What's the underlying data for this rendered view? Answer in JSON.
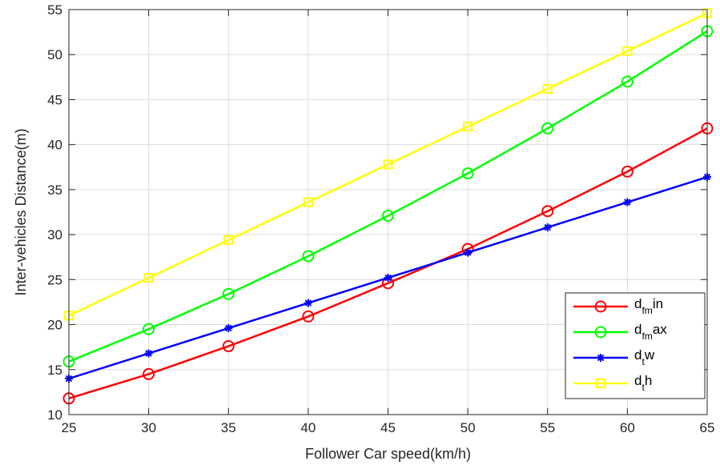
{
  "chart_data": {
    "type": "line",
    "xlabel": "Follower Car speed(km/h)",
    "ylabel": "Inter-vehicles Distance(m)",
    "xlim": [
      25,
      65
    ],
    "ylim": [
      10,
      55
    ],
    "xticks": [
      25,
      30,
      35,
      40,
      45,
      50,
      55,
      60,
      65
    ],
    "yticks": [
      10,
      15,
      20,
      25,
      30,
      35,
      40,
      45,
      50,
      55
    ],
    "grid": true,
    "legend_position": "bottom-right",
    "x": [
      25,
      30,
      35,
      40,
      45,
      50,
      55,
      60,
      65
    ],
    "series": [
      {
        "name": "d_fm in",
        "legend": {
          "base": "d",
          "sub": "fm",
          "suffix": "in"
        },
        "color": "#ff0000",
        "marker": "circle",
        "values": [
          11.8,
          14.5,
          17.6,
          20.9,
          24.6,
          28.4,
          32.6,
          37.0,
          41.8
        ]
      },
      {
        "name": "d_fm ax",
        "legend": {
          "base": "d",
          "sub": "fm",
          "suffix": "ax"
        },
        "color": "#00ff00",
        "marker": "circle",
        "values": [
          15.9,
          19.5,
          23.4,
          27.6,
          32.1,
          36.8,
          41.8,
          47.0,
          52.6
        ]
      },
      {
        "name": "d_t w",
        "legend": {
          "base": "d",
          "sub": "t",
          "suffix": "w"
        },
        "color": "#0000ff",
        "marker": "star",
        "values": [
          14.0,
          16.8,
          19.6,
          22.4,
          25.2,
          28.0,
          30.8,
          33.6,
          36.4
        ]
      },
      {
        "name": "d_t h",
        "legend": {
          "base": "d",
          "sub": "t",
          "suffix": "h"
        },
        "color": "#ffff00",
        "marker": "square",
        "values": [
          21.0,
          25.2,
          29.4,
          33.6,
          37.8,
          42.0,
          46.2,
          50.4,
          54.6
        ]
      }
    ]
  }
}
